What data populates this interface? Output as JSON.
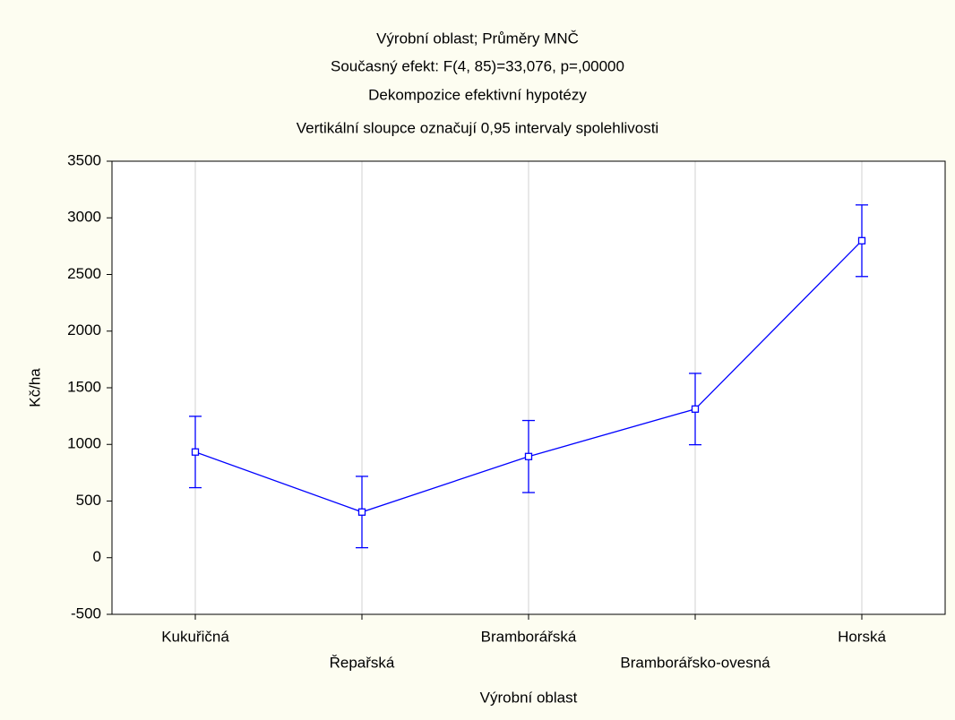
{
  "chart_data": {
    "type": "line",
    "title": "Výrobní oblast; Průměry MNČ",
    "subtitle": [
      "Současný efekt: F(4, 85)=33,076, p=,00000",
      "Dekompozice efektivní hypotézy",
      "Vertikální sloupce označují 0,95 intervaly spolehlivosti"
    ],
    "x_label": "Výrobní oblast",
    "y_label": "Kč/ha",
    "categories": [
      "Kukuřičná",
      "Řepařská",
      "Bramborářská",
      "Bramborářsko-ovesná",
      "Horská"
    ],
    "values": [
      933,
      403,
      893,
      1312,
      2798
    ],
    "errors": [
      315,
      315,
      318,
      315,
      316
    ],
    "color": "#0000ff",
    "ylim": [
      -500,
      3500
    ],
    "yticks": [
      -500,
      0,
      500,
      1000,
      1500,
      2000,
      2500,
      3000,
      3500
    ],
    "grid": "x"
  }
}
